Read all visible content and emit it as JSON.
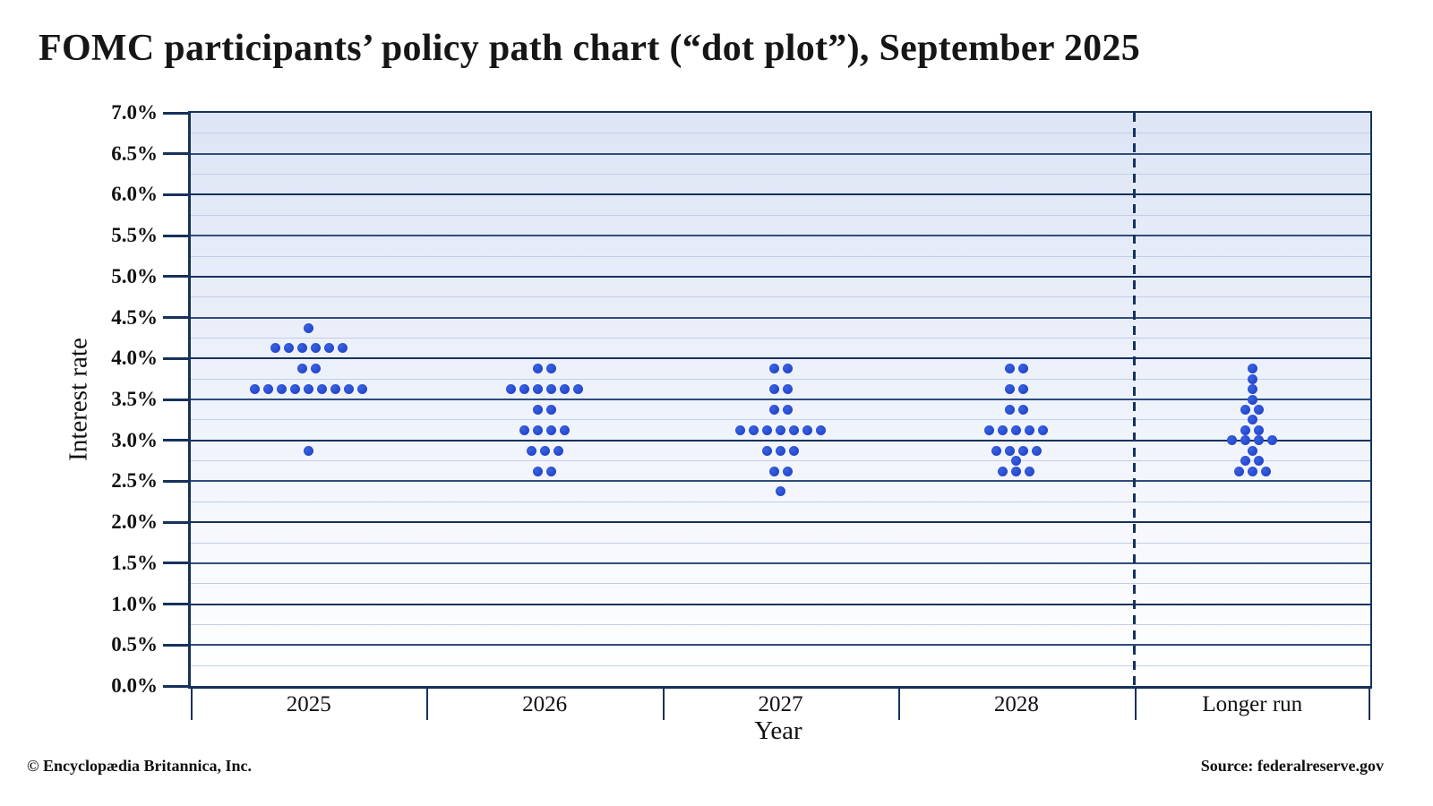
{
  "title": "FOMC participants’ policy path chart (“dot plot”), September 2025",
  "y_axis": {
    "label": "Interest rate",
    "ticks": [
      "7.0%",
      "6.5%",
      "6.0%",
      "5.5%",
      "5.0%",
      "4.5%",
      "4.0%",
      "3.5%",
      "3.0%",
      "2.5%",
      "2.0%",
      "1.5%",
      "1.0%",
      "0.5%",
      "0.0%"
    ]
  },
  "x_axis": {
    "label": "Year"
  },
  "footer": {
    "copyright": "© Encyclopædia Britannica, Inc.",
    "source": "Source: federalreserve.gov"
  },
  "chart_data": {
    "type": "scatter",
    "subtype": "fomc-dot-plot",
    "title": "FOMC participants’ policy path chart (“dot plot”), September 2025",
    "xlabel": "Year",
    "ylabel": "Interest rate",
    "ylim": [
      0,
      7
    ],
    "y_tick_step_pct": 0.5,
    "grid": "horizontal; minor lines every 0.25%, darker lines every 0.5%, darkest every 1.0%",
    "legend": "none",
    "categories": [
      "2025",
      "2026",
      "2027",
      "2028",
      "Longer run"
    ],
    "dashed_separator_after": "2028",
    "series": [
      {
        "category": "2025",
        "dots": [
          {
            "rate": 4.375,
            "count": 1
          },
          {
            "rate": 4.125,
            "count": 6
          },
          {
            "rate": 3.875,
            "count": 2
          },
          {
            "rate": 3.625,
            "count": 9
          },
          {
            "rate": 2.875,
            "count": 1
          }
        ]
      },
      {
        "category": "2026",
        "dots": [
          {
            "rate": 3.875,
            "count": 2
          },
          {
            "rate": 3.625,
            "count": 6
          },
          {
            "rate": 3.375,
            "count": 2
          },
          {
            "rate": 3.125,
            "count": 4
          },
          {
            "rate": 2.875,
            "count": 3
          },
          {
            "rate": 2.625,
            "count": 2
          }
        ]
      },
      {
        "category": "2027",
        "dots": [
          {
            "rate": 3.875,
            "count": 2
          },
          {
            "rate": 3.625,
            "count": 2
          },
          {
            "rate": 3.375,
            "count": 2
          },
          {
            "rate": 3.125,
            "count": 7
          },
          {
            "rate": 2.875,
            "count": 3
          },
          {
            "rate": 2.625,
            "count": 2
          },
          {
            "rate": 2.375,
            "count": 1
          }
        ]
      },
      {
        "category": "2028",
        "dots": [
          {
            "rate": 3.875,
            "count": 2
          },
          {
            "rate": 3.625,
            "count": 2
          },
          {
            "rate": 3.375,
            "count": 2
          },
          {
            "rate": 3.125,
            "count": 5
          },
          {
            "rate": 2.875,
            "count": 4
          },
          {
            "rate": 2.75,
            "count": 1
          },
          {
            "rate": 2.625,
            "count": 3
          }
        ]
      },
      {
        "category": "Longer run",
        "dots": [
          {
            "rate": 3.875,
            "count": 1
          },
          {
            "rate": 3.75,
            "count": 1
          },
          {
            "rate": 3.625,
            "count": 1
          },
          {
            "rate": 3.5,
            "count": 1
          },
          {
            "rate": 3.375,
            "count": 2
          },
          {
            "rate": 3.25,
            "count": 1
          },
          {
            "rate": 3.125,
            "count": 2
          },
          {
            "rate": 3.0,
            "count": 4
          },
          {
            "rate": 2.875,
            "count": 1
          },
          {
            "rate": 2.75,
            "count": 2
          },
          {
            "rate": 2.625,
            "count": 3
          }
        ]
      }
    ],
    "colors": {
      "dot": "#2347cb",
      "axis": "#16325c",
      "grid_major": "#16325c",
      "grid_half": "#2f4d7e",
      "grid_minor": "#c3cde8",
      "plot_bg_top": "#dde5f5",
      "plot_bg_bottom": "#ffffff"
    }
  }
}
